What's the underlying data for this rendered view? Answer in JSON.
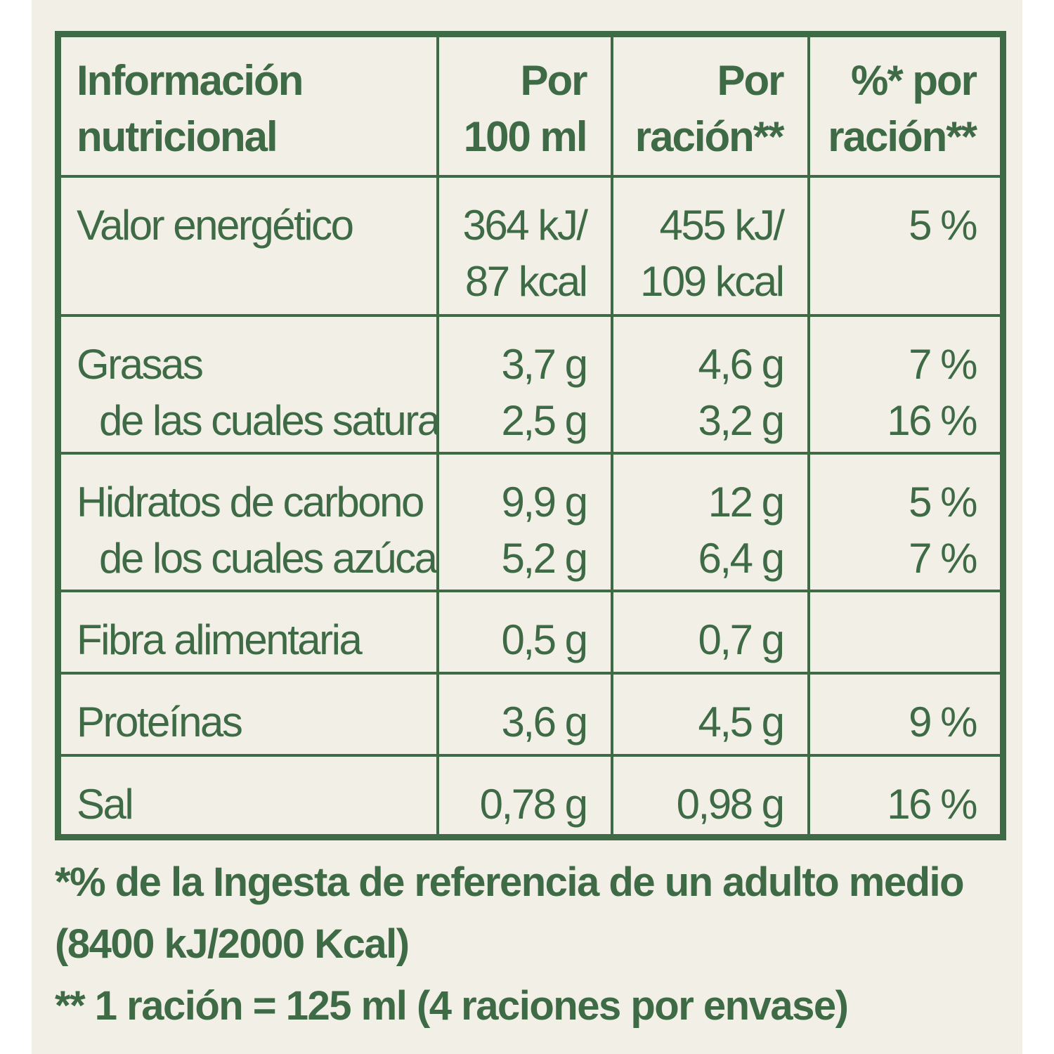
{
  "header": {
    "col1_line1": "Información",
    "col1_line2": "nutricional",
    "col2_line1": "Por",
    "col2_line2": "100 ml",
    "col3_line1": "Por",
    "col3_line2": "ración**",
    "col4_line1": "%* por",
    "col4_line2": "ración**"
  },
  "rows": [
    {
      "label": "Valor energético",
      "per100_a": "364 kJ/",
      "per100_b": "87 kcal",
      "portion_a": "455 kJ/",
      "portion_b": "109 kcal",
      "pct": "5 %"
    },
    {
      "label": "Grasas",
      "sublabel": "de las cuales saturadas",
      "per100": "3,7 g",
      "per100_sub": "2,5 g",
      "portion": "4,6 g",
      "portion_sub": "3,2 g",
      "pct": "7 %",
      "pct_sub": "16 %"
    },
    {
      "label": "Hidratos de carbono",
      "sublabel": "de los cuales azúcares",
      "per100": "9,9 g",
      "per100_sub": "5,2 g",
      "portion": "12 g",
      "portion_sub": "6,4 g",
      "pct": "5 %",
      "pct_sub": "7 %"
    },
    {
      "label": "Fibra alimentaria",
      "per100": "0,5 g",
      "portion": "0,7 g",
      "pct": ""
    },
    {
      "label": "Proteínas",
      "per100": "3,6 g",
      "portion": "4,5 g",
      "pct": "9 %"
    },
    {
      "label": "Sal",
      "per100": "0,78 g",
      "portion": "0,98 g",
      "pct": "16 %"
    }
  ],
  "footnotes": {
    "line1": "*% de la Ingesta de referencia de un adulto medio",
    "line2": "(8400 kJ/2000 Kcal)",
    "line3": "** 1 ración = 125 ml (4 raciones por envase)"
  },
  "colors": {
    "text": "#3e6b45",
    "background": "#f2efe7"
  }
}
